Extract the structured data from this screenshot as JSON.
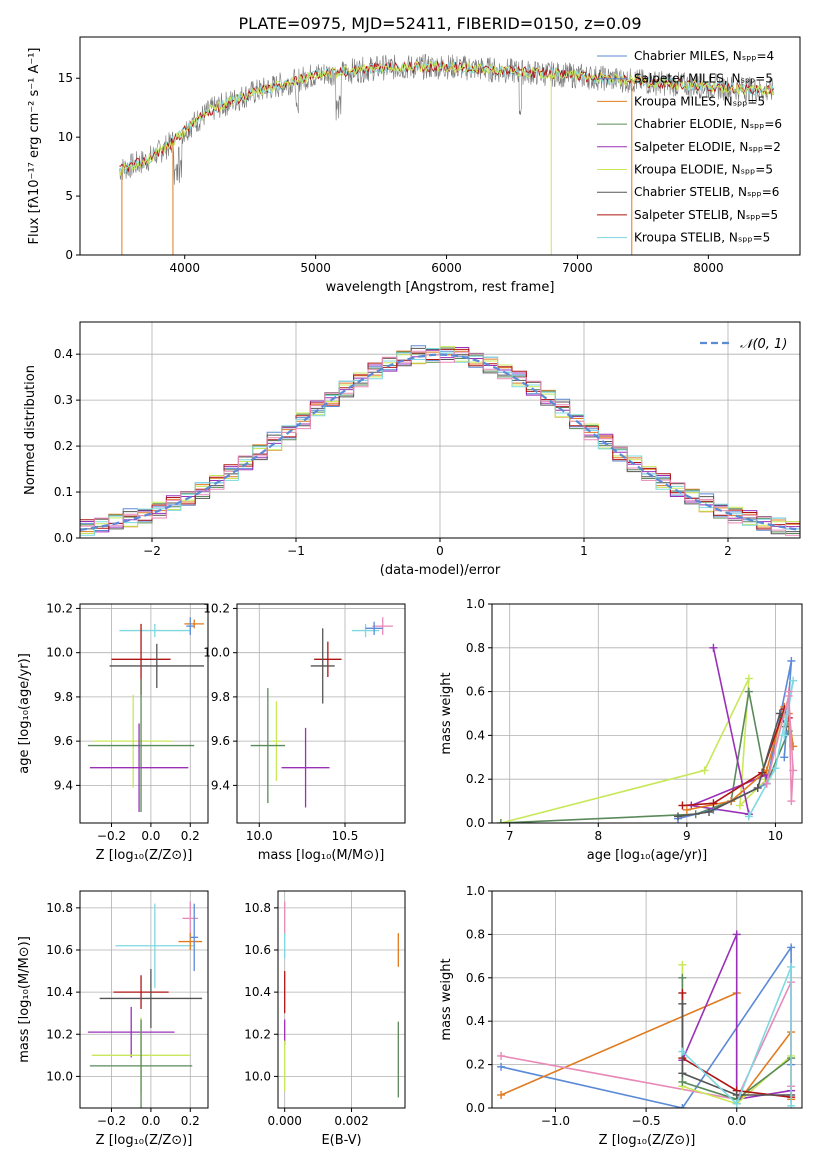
{
  "figure_title": "PLATE=0975, MJD=52411, FIBERID=0150, z=0.09",
  "colors": {
    "Chabrier MILES": "#5b8ad6",
    "Salpeter MILES": "#5b8ad6",
    "Kroupa MILES": "#e07b20",
    "Chabrier ELODIE": "#5a8a5a",
    "Salpeter ELODIE": "#9b30b8",
    "Kroupa ELODIE": "#c8e85a",
    "Chabrier STELIB": "#555555",
    "Salpeter STELIB": "#b01515",
    "Kroupa STELIB": "#7fd8e0",
    "pink": "#e88ab8",
    "gray_data": "#777777",
    "normal_curve": "#5b8ad6"
  },
  "chart_data": [
    {
      "type": "line",
      "name": "spectrum",
      "xlabel": "wavelength [Angstrom, rest frame]",
      "ylabel": "Flux [fλ10⁻¹⁷ erg cm⁻² s⁻¹ A⁻¹]",
      "xlim": [
        3200,
        8700
      ],
      "ylim": [
        0,
        18.5
      ],
      "xticks": [
        4000,
        5000,
        6000,
        7000,
        8000
      ],
      "xtick_labels": [
        "4000",
        "5000",
        "6000",
        "7000",
        "8000"
      ],
      "yticks": [
        0,
        5,
        10,
        15
      ],
      "ytick_labels": [
        "0",
        "5",
        "10",
        "15"
      ],
      "grid": false,
      "legend_position": "right",
      "legend": [
        "Chabrier MILES, Nₛₚₚ=4",
        "Salpeter MILES, Nₛₚₚ=5",
        "Kroupa MILES, Nₛₚₚ=5",
        "Chabrier ELODIE, Nₛₚₚ=6",
        "Salpeter ELODIE, Nₛₚₚ=2",
        "Kroupa ELODIE, Nₛₚₚ=5",
        "Chabrier STELIB, Nₛₚₚ=6",
        "Salpeter STELIB, Nₛₚₚ=5",
        "Kroupa STELIB, Nₛₚₚ=5"
      ],
      "continuum": {
        "x": [
          3500,
          3600,
          3700,
          3800,
          3900,
          4000,
          4200,
          4500,
          5000,
          5500,
          6000,
          6500,
          7000,
          7500,
          8000,
          8500
        ],
        "y": [
          7.2,
          7.6,
          8.0,
          8.7,
          9.5,
          10.6,
          12.3,
          13.7,
          15.3,
          15.9,
          16.0,
          15.6,
          15.2,
          14.7,
          14.3,
          13.9
        ]
      },
      "spikes_down": [
        {
          "x": 3520,
          "y": 0
        },
        {
          "x": 3910,
          "y": 0
        },
        {
          "x": 6800,
          "y": 0
        },
        {
          "x": 7415,
          "y": 0
        }
      ]
    },
    {
      "type": "bar",
      "name": "residual-histogram",
      "xlabel": "(data-model)/error",
      "ylabel": "Normed distribution",
      "xlim": [
        -2.5,
        2.5
      ],
      "ylim": [
        0,
        0.47
      ],
      "xticks": [
        -2,
        -1,
        0,
        1,
        2
      ],
      "xtick_labels": [
        "−2",
        "−1",
        "0",
        "1",
        "2"
      ],
      "yticks": [
        0.0,
        0.1,
        0.2,
        0.3,
        0.4
      ],
      "ytick_labels": [
        "0.0",
        "0.1",
        "0.2",
        "0.3",
        "0.4"
      ],
      "grid": true,
      "legend_position": "top-right",
      "curve_label": "𝒩(0, 1)",
      "bin_width": 0.1,
      "hist_offsets": [
        [
          0.0,
          0.012,
          -0.009,
          0.0,
          0.024,
          -0.012,
          0.008,
          0.0,
          -0.015,
          0.018
        ],
        [
          0.01,
          -0.006,
          0.016,
          0.02,
          -0.015,
          0.006,
          0.0,
          0.012,
          -0.008,
          0.014
        ],
        [
          -0.01,
          0.009,
          0.0,
          0.018,
          0.006,
          -0.016,
          0.015,
          -0.004,
          0.011,
          -0.012
        ],
        [
          0.005,
          0.016,
          -0.012,
          -0.008,
          0.0,
          0.01,
          -0.006,
          0.02,
          0.004,
          0.0
        ],
        [
          0.016,
          -0.01,
          0.006,
          0.012,
          -0.014,
          0.0,
          0.018,
          -0.01,
          -0.004,
          0.01
        ],
        [
          -0.006,
          0.0,
          0.016,
          -0.012,
          0.018,
          0.012,
          -0.01,
          0.004,
          0.015,
          -0.016
        ],
        [
          0.012,
          0.02,
          -0.004,
          0.0,
          0.008,
          -0.01,
          0.012,
          0.016,
          -0.012,
          0.004
        ],
        [
          0.0,
          -0.014,
          0.01,
          0.016,
          -0.006,
          0.014,
          0.004,
          -0.012,
          0.009,
          0.018
        ],
        [
          -0.014,
          0.006,
          0.018,
          -0.004,
          0.012,
          0.0,
          -0.016,
          0.01,
          0.014,
          -0.008
        ]
      ]
    },
    {
      "type": "scatter",
      "name": "age-vs-metallicity",
      "xlabel": "Z [log₁₀(Z/Z⊙)]",
      "ylabel": "age  [log₁₀(age/yr)]",
      "xlim": [
        -0.36,
        0.29
      ],
      "ylim": [
        9.23,
        10.22
      ],
      "xticks": [
        -0.2,
        0.0,
        0.2
      ],
      "xtick_labels": [
        "−0.2",
        "0.0",
        "0.2"
      ],
      "yticks": [
        9.4,
        9.6,
        9.8,
        10.0,
        10.2
      ],
      "ytick_labels": [
        "9.4",
        "9.6",
        "9.8",
        "10.0",
        "10.2"
      ],
      "grid": true,
      "points": [
        {
          "c": "Kroupa STELIB",
          "x": 0.02,
          "xe": 0.18,
          "y": 10.1,
          "ye": 0.03
        },
        {
          "c": "Kroupa MILES",
          "x": 0.22,
          "xe": 0.05,
          "y": 10.13,
          "ye": 0.02
        },
        {
          "c": "Chabrier MILES",
          "x": 0.2,
          "xe": 0.02,
          "y": 10.12,
          "ye": 0.04
        },
        {
          "c": "Salpeter STELIB",
          "x": -0.05,
          "xe": 0.15,
          "y": 9.97,
          "ye": 0.16
        },
        {
          "c": "Chabrier STELIB",
          "x": 0.03,
          "xe": 0.24,
          "y": 9.94,
          "ye": 0.1
        },
        {
          "c": "Kroupa ELODIE",
          "x": -0.09,
          "xe": 0.2,
          "y": 9.6,
          "ye": 0.21
        },
        {
          "c": "Chabrier ELODIE",
          "x": -0.05,
          "xe": 0.27,
          "y": 9.58,
          "ye": 0.3
        },
        {
          "c": "Salpeter ELODIE",
          "x": -0.06,
          "xe": 0.25,
          "y": 9.48,
          "ye": 0.2
        }
      ]
    },
    {
      "type": "scatter",
      "name": "age-vs-mass",
      "xlabel": "mass [log₁₀(M/M⊙)]",
      "ylabel": "",
      "xlim": [
        9.87,
        10.85
      ],
      "ylim": [
        9.23,
        10.22
      ],
      "xticks": [
        10.0,
        10.5
      ],
      "xtick_labels": [
        "10.0",
        "10.5"
      ],
      "yticks": [
        9.4,
        9.6,
        9.8,
        10.0,
        10.2
      ],
      "ytick_labels": [
        "9.4",
        "9.6",
        "9.8",
        "10.0",
        "10.2"
      ],
      "grid": true,
      "points": [
        {
          "c": "Kroupa STELIB",
          "x": 10.62,
          "xe": 0.08,
          "y": 10.1,
          "ye": 0.03
        },
        {
          "c": "pink",
          "x": 10.72,
          "xe": 0.06,
          "y": 10.12,
          "ye": 0.04
        },
        {
          "c": "Chabrier MILES",
          "x": 10.67,
          "xe": 0.05,
          "y": 10.11,
          "ye": 0.03
        },
        {
          "c": "Salpeter STELIB",
          "x": 10.4,
          "xe": 0.08,
          "y": 9.97,
          "ye": 0.08
        },
        {
          "c": "Chabrier STELIB",
          "x": 10.37,
          "xe": 0.07,
          "y": 9.94,
          "ye": 0.17
        },
        {
          "c": "Kroupa ELODIE",
          "x": 10.1,
          "xe": 0.03,
          "y": 9.6,
          "ye": 0.18
        },
        {
          "c": "Chabrier ELODIE",
          "x": 10.05,
          "xe": 0.1,
          "y": 9.58,
          "ye": 0.26
        },
        {
          "c": "Salpeter ELODIE",
          "x": 10.27,
          "xe": 0.14,
          "y": 9.48,
          "ye": 0.18
        }
      ]
    },
    {
      "type": "line",
      "name": "mass-weight-vs-age",
      "xlabel": "age  [log₁₀(age/yr)]",
      "ylabel": "mass weight",
      "xlim": [
        6.8,
        10.3
      ],
      "ylim": [
        0,
        1.0
      ],
      "xticks": [
        7,
        8,
        9,
        10
      ],
      "xtick_labels": [
        "7",
        "8",
        "9",
        "10"
      ],
      "yticks": [
        0.0,
        0.2,
        0.4,
        0.6,
        0.8,
        1.0
      ],
      "ytick_labels": [
        "0.0",
        "0.2",
        "0.4",
        "0.6",
        "0.8",
        "1.0"
      ],
      "grid": true,
      "series": [
        {
          "c": "Kroupa ELODIE",
          "x": [
            6.9,
            9.2,
            9.7,
            9.6,
            9.9,
            10.1
          ],
          "y": [
            0.0,
            0.24,
            0.66,
            0.08,
            0.2,
            0.5
          ]
        },
        {
          "c": "Chabrier ELODIE",
          "x": [
            6.9,
            9.1,
            9.5,
            9.7,
            9.9,
            10.15
          ],
          "y": [
            0.0,
            0.04,
            0.1,
            0.6,
            0.18,
            0.42
          ]
        },
        {
          "c": "Salpeter ELODIE",
          "x": [
            9.3,
            9.7,
            9.05,
            9.9
          ],
          "y": [
            0.8,
            0.04,
            0.08,
            0.22
          ]
        },
        {
          "c": "Chabrier MILES",
          "x": [
            8.9,
            9.3,
            9.9,
            10.18,
            10.1
          ],
          "y": [
            0.02,
            0.06,
            0.18,
            0.74,
            0.3
          ]
        },
        {
          "c": "Kroupa MILES",
          "x": [
            9.0,
            9.5,
            9.9,
            10.1,
            10.2,
            10.15
          ],
          "y": [
            0.06,
            0.1,
            0.24,
            0.53,
            0.35,
            0.5
          ]
        },
        {
          "c": "Salpeter STELIB",
          "x": [
            8.95,
            9.3,
            9.85,
            10.1,
            10.15
          ],
          "y": [
            0.08,
            0.09,
            0.23,
            0.52,
            0.48
          ]
        },
        {
          "c": "Chabrier STELIB",
          "x": [
            8.9,
            9.25,
            9.8,
            10.05,
            10.12
          ],
          "y": [
            0.03,
            0.05,
            0.16,
            0.5,
            0.44
          ]
        },
        {
          "c": "Kroupa STELIB",
          "x": [
            9.7,
            10.0,
            10.2,
            10.1
          ],
          "y": [
            0.03,
            0.25,
            0.65,
            0.4
          ]
        },
        {
          "c": "pink",
          "x": [
            9.9,
            10.15,
            10.2,
            10.18,
            10.15
          ],
          "y": [
            0.18,
            0.58,
            0.24,
            0.1,
            0.6
          ]
        }
      ]
    },
    {
      "type": "scatter",
      "name": "mass-vs-metallicity",
      "xlabel": "Z [log₁₀(Z/Z⊙)]",
      "ylabel": "mass [log₁₀(M/M⊙)]",
      "xlim": [
        -0.36,
        0.29
      ],
      "ylim": [
        9.85,
        10.88
      ],
      "xticks": [
        -0.2,
        0.0,
        0.2
      ],
      "xtick_labels": [
        "−0.2",
        "0.0",
        "0.2"
      ],
      "yticks": [
        10.0,
        10.2,
        10.4,
        10.6,
        10.8
      ],
      "ytick_labels": [
        "10.0",
        "10.2",
        "10.4",
        "10.6",
        "10.8"
      ],
      "grid": true,
      "points": [
        {
          "c": "pink",
          "x": 0.2,
          "xe": 0.04,
          "y": 10.75,
          "ye": 0.08
        },
        {
          "c": "Kroupa STELIB",
          "x": 0.02,
          "xe": 0.2,
          "y": 10.62,
          "ye": 0.2
        },
        {
          "c": "Kroupa MILES",
          "x": 0.2,
          "xe": 0.06,
          "y": 10.64,
          "ye": 0.04
        },
        {
          "c": "Chabrier MILES",
          "x": 0.22,
          "xe": 0.02,
          "y": 10.66,
          "ye": 0.16
        },
        {
          "c": "Salpeter STELIB",
          "x": -0.05,
          "xe": 0.14,
          "y": 10.4,
          "ye": 0.08
        },
        {
          "c": "Chabrier STELIB",
          "x": 0.0,
          "xe": 0.26,
          "y": 10.37,
          "ye": 0.14
        },
        {
          "c": "Salpeter ELODIE",
          "x": -0.1,
          "xe": 0.22,
          "y": 10.21,
          "ye": 0.12
        },
        {
          "c": "Kroupa ELODIE",
          "x": -0.05,
          "xe": 0.25,
          "y": 10.1,
          "ye": 0.18
        },
        {
          "c": "Chabrier ELODIE",
          "x": -0.05,
          "xe": 0.26,
          "y": 10.05,
          "ye": 0.22
        }
      ]
    },
    {
      "type": "scatter",
      "name": "mass-vs-extinction",
      "xlabel": "E(B-V)",
      "ylabel": "",
      "xlim": [
        -0.0002,
        0.0036
      ],
      "ylim": [
        9.85,
        10.88
      ],
      "xticks": [
        0.0,
        0.002
      ],
      "xtick_labels": [
        "0.000",
        "0.002"
      ],
      "yticks": [
        10.0,
        10.2,
        10.4,
        10.6,
        10.8
      ],
      "ytick_labels": [
        "10.0",
        "10.2",
        "10.4",
        "10.6",
        "10.8"
      ],
      "grid": true,
      "points": [
        {
          "c": "pink",
          "x": 0.0,
          "y": 10.75,
          "ye": 0.08
        },
        {
          "c": "Kroupa STELIB",
          "x": 0.0,
          "y": 10.62,
          "ye": 0.06
        },
        {
          "c": "Salpeter STELIB",
          "x": 0.0,
          "y": 10.4,
          "ye": 0.1
        },
        {
          "c": "Salpeter ELODIE",
          "x": 0.0,
          "y": 10.21,
          "ye": 0.06
        },
        {
          "c": "Kroupa ELODIE",
          "x": 0.0,
          "y": 10.05,
          "ye": 0.12
        },
        {
          "c": "Kroupa MILES",
          "x": 0.0034,
          "y": 10.6,
          "ye": 0.08
        },
        {
          "c": "Chabrier ELODIE",
          "x": 0.0034,
          "y": 10.08,
          "ye": 0.18
        }
      ]
    },
    {
      "type": "line",
      "name": "mass-weight-vs-metallicity",
      "xlabel": "Z [log₁₀(Z/Z⊙)]",
      "ylabel": "mass weight",
      "xlim": [
        -1.35,
        0.36
      ],
      "ylim": [
        0,
        1.0
      ],
      "xticks": [
        -1.0,
        -0.5,
        0.0
      ],
      "xtick_labels": [
        "−1.0",
        "−0.5",
        "0.0"
      ],
      "yticks": [
        0.0,
        0.2,
        0.4,
        0.6,
        0.8,
        1.0
      ],
      "ytick_labels": [
        "0.0",
        "0.2",
        "0.4",
        "0.6",
        "0.8",
        "1.0"
      ],
      "grid": true,
      "series": [
        {
          "c": "Chabrier MILES",
          "x": [
            -1.3,
            -0.3,
            0.3,
            0.3
          ],
          "y": [
            0.19,
            0.0,
            0.74,
            0.2
          ]
        },
        {
          "c": "Kroupa MILES",
          "x": [
            -1.3,
            0.0,
            0.0,
            0.3,
            0.3
          ],
          "y": [
            0.06,
            0.53,
            0.02,
            0.35,
            0.04
          ]
        },
        {
          "c": "pink",
          "x": [
            -1.3,
            0.0,
            0.3,
            0.3
          ],
          "y": [
            0.24,
            0.04,
            0.58,
            0.1
          ]
        },
        {
          "c": "Salpeter ELODIE",
          "x": [
            -0.3,
            0.0,
            0.0,
            0.3
          ],
          "y": [
            0.22,
            0.8,
            0.04,
            0.08
          ]
        },
        {
          "c": "Kroupa ELODIE",
          "x": [
            -0.3,
            -0.3,
            0.0,
            0.3
          ],
          "y": [
            0.66,
            0.1,
            0.02,
            0.24
          ]
        },
        {
          "c": "Chabrier ELODIE",
          "x": [
            -0.3,
            -0.3,
            0.0,
            0.3
          ],
          "y": [
            0.6,
            0.12,
            0.04,
            0.23
          ]
        },
        {
          "c": "Salpeter STELIB",
          "x": [
            -0.3,
            -0.3,
            0.0,
            0.3
          ],
          "y": [
            0.53,
            0.23,
            0.08,
            0.05
          ]
        },
        {
          "c": "Chabrier STELIB",
          "x": [
            -0.3,
            -0.3,
            0.0,
            0.3
          ],
          "y": [
            0.48,
            0.16,
            0.06,
            0.06
          ]
        },
        {
          "c": "Kroupa STELIB",
          "x": [
            -0.3,
            0.0,
            0.3,
            0.3
          ],
          "y": [
            0.26,
            0.02,
            0.65,
            0.01
          ]
        }
      ]
    }
  ]
}
